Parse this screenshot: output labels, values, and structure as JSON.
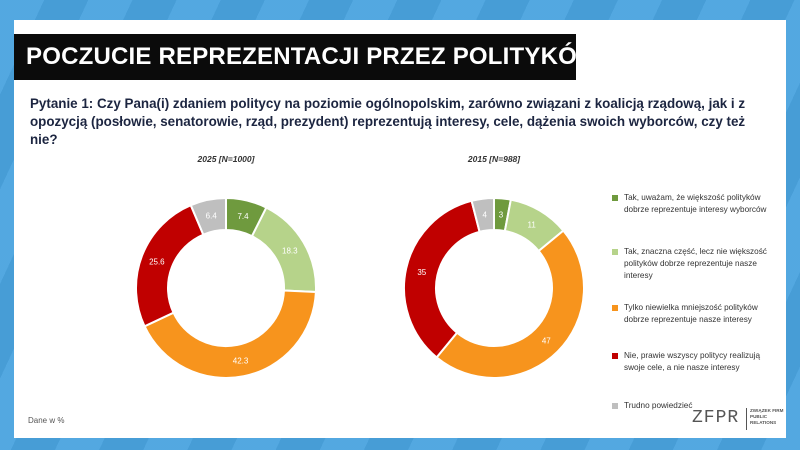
{
  "title": "POCZUCIE REPREZENTACJI PRZEZ POLITYKÓW",
  "question": "Pytanie 1: Czy Pana(i) zdaniem politycy na poziomie ogólnopolskim, zarówno związani z koalicją rządową, jak i z opozycją (posłowie, senatorowie, rząd, prezydent) reprezentują interesy, cele, dążenia swoich wyborców, czy też nie?",
  "note": "Dane w %",
  "logo": {
    "mark": "ZFPR",
    "tagline": "ZWIĄZEK FIRM PUBLIC RELATIONS"
  },
  "colors": {
    "green_dark": "#6f9a3e",
    "green_light": "#b6d38a",
    "orange": "#f7941d",
    "red": "#c00000",
    "grey": "#bfbfbf"
  },
  "chart_data": [
    {
      "type": "pie",
      "variant": "donut",
      "title": "2025 [N=1000]",
      "categories": [
        "Tak, uważam, że większość polityków dobrze reprezentuje interesy wyborców",
        "Tak, znaczna część, lecz nie większość polityków dobrze reprezentuje nasze interesy",
        "Tylko niewielka mniejszość polityków dobrze reprezentuje nasze interesy",
        "Nie, prawie wszyscy politycy realizują swoje cele, a nie nasze interesy",
        "Trudno powiedzieć"
      ],
      "values": [
        7.4,
        18.3,
        42.3,
        25.6,
        6.4
      ],
      "labels": [
        "7.4",
        "18.3",
        "42.3",
        "25.6",
        "6.4"
      ],
      "colors": [
        "#6f9a3e",
        "#b6d38a",
        "#f7941d",
        "#c00000",
        "#bfbfbf"
      ]
    },
    {
      "type": "pie",
      "variant": "donut",
      "title": "2015 [N=988]",
      "categories": [
        "Tak, uważam, że większość polityków dobrze reprezentuje interesy wyborców",
        "Tak, znaczna część, lecz nie większość polityków dobrze reprezentuje nasze interesy",
        "Tylko niewielka mniejszość polityków dobrze reprezentuje nasze interesy",
        "Nie, prawie wszyscy politycy realizują swoje cele, a nie nasze interesy",
        "Trudno powiedzieć"
      ],
      "values": [
        3,
        11,
        47,
        35,
        4
      ],
      "labels": [
        "3",
        "11",
        "47",
        "35",
        "4"
      ],
      "colors": [
        "#6f9a3e",
        "#b6d38a",
        "#f7941d",
        "#c00000",
        "#bfbfbf"
      ]
    }
  ],
  "legend": [
    {
      "label": "Tak, uważam, że większość polityków dobrze reprezentuje interesy wyborców",
      "color": "#6f9a3e"
    },
    {
      "label": "Tak, znaczna część, lecz nie większość polityków dobrze reprezentuje nasze interesy",
      "color": "#b6d38a"
    },
    {
      "label": "Tylko niewielka mniejszość polityków dobrze reprezentuje nasze interesy",
      "color": "#f7941d"
    },
    {
      "label": "Nie, prawie wszyscy politycy realizują swoje cele, a nie nasze interesy",
      "color": "#c00000"
    },
    {
      "label": "Trudno powiedzieć",
      "color": "#bfbfbf"
    }
  ]
}
